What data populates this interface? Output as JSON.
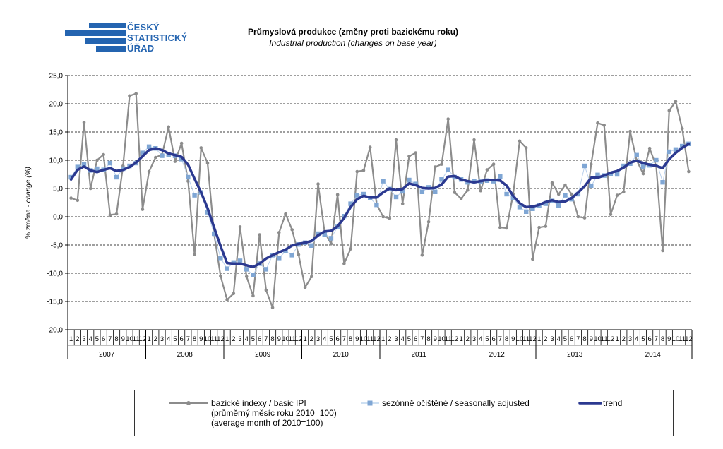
{
  "logo": {
    "lines": [
      "ČESKÝ",
      "STATISTICKÝ",
      "ÚŘAD"
    ],
    "color": "#2464b0"
  },
  "title": {
    "main": "Průmyslová produkce (změny proti bazickému roku)",
    "sub": "Industrial production (changes on base year)"
  },
  "chart_data": {
    "type": "line",
    "ylabel": "% změna - change (%)",
    "ylabel_parts": {
      "cz": "% změna - ",
      "en": "change (%)"
    },
    "ylim": [
      -20,
      25
    ],
    "yticks": [
      "25,0",
      "20,0",
      "15,0",
      "10,0",
      "5,0",
      "0,0",
      "-5,0",
      "-10,0",
      "-15,0",
      "-20,0"
    ],
    "ytick_values": [
      25,
      20,
      15,
      10,
      5,
      0,
      -5,
      -10,
      -15,
      -20
    ],
    "grid": "horizontal dashed",
    "month_labels": [
      "1",
      "2",
      "3",
      "4",
      "5",
      "6",
      "7",
      "8",
      "9",
      "10",
      "11",
      "12"
    ],
    "years": [
      "2007",
      "2008",
      "2009",
      "2010",
      "2011",
      "2012",
      "2013",
      "2014"
    ],
    "series": [
      {
        "name": "bazické indexy / basic IPI (průměrný měsíc roku 2010=100) (average month of 2010=100)",
        "style": "line-circle",
        "color": "#8c8c8c",
        "values": [
          3.3,
          2.9,
          16.7,
          5.0,
          10.0,
          11.0,
          0.3,
          0.5,
          9.0,
          21.4,
          21.8,
          1.3,
          8.0,
          10.5,
          11.0,
          15.9,
          9.8,
          13.0,
          6.3,
          -6.7,
          12.2,
          9.5,
          -3.0,
          -10.5,
          -14.7,
          -13.6,
          -1.8,
          -10.6,
          -14.0,
          -3.2,
          -13.0,
          -16.1,
          -2.8,
          0.5,
          -2.3,
          -6.7,
          -12.5,
          -10.6,
          5.8,
          -2.7,
          -4.8,
          3.9,
          -8.3,
          -5.7,
          8.0,
          8.2,
          12.3,
          2.2,
          0.0,
          -0.3,
          13.6,
          2.3,
          10.7,
          11.3,
          -6.8,
          -0.9,
          8.8,
          9.3,
          17.3,
          4.3,
          3.2,
          4.7,
          13.6,
          4.6,
          8.3,
          9.3,
          -1.9,
          -2.0,
          4.0,
          13.4,
          12.2,
          -7.5,
          -1.9,
          -1.7,
          6.0,
          4.0,
          5.6,
          4.0,
          0.0,
          -0.2,
          9.3,
          16.6,
          16.2,
          0.4,
          3.8,
          4.4,
          15.1,
          10.0,
          7.6,
          12.1,
          9.0,
          -6.0,
          18.8,
          20.4,
          15.6,
          8.0
        ]
      },
      {
        "name": "sezónně očištěné / seasonally adjusted",
        "style": "square",
        "color": "#7fa6d4",
        "values": [
          7.0,
          8.8,
          9.3,
          8.2,
          8.5,
          8.3,
          9.5,
          7.0,
          8.5,
          9.0,
          9.5,
          11.3,
          12.4,
          12.1,
          10.8,
          11.0,
          10.8,
          10.2,
          7.0,
          3.8,
          4.3,
          0.8,
          -3.0,
          -7.3,
          -9.2,
          -8.1,
          -7.8,
          -9.3,
          -10.3,
          -8.3,
          -9.3,
          -6.8,
          -7.3,
          -6.1,
          -6.8,
          -4.9,
          -4.6,
          -5.1,
          -3.0,
          -3.1,
          -3.8,
          -1.8,
          0.1,
          2.3,
          3.8,
          4.0,
          3.3,
          2.1,
          6.3,
          4.9,
          3.5,
          4.5,
          6.5,
          5.8,
          4.4,
          5.2,
          4.4,
          6.6,
          8.3,
          7.0,
          6.6,
          6.1,
          6.3,
          6.2,
          6.4,
          6.3,
          7.1,
          4.0,
          3.4,
          1.7,
          0.9,
          1.4,
          2.0,
          2.3,
          2.8,
          2.0,
          3.8,
          3.1,
          4.0,
          9.0,
          5.4,
          7.4,
          7.3,
          7.6,
          7.5,
          9.0,
          9.4,
          10.9,
          8.9,
          9.1,
          10.0,
          6.1,
          11.5,
          11.9,
          12.5,
          12.9
        ]
      },
      {
        "name": "trend",
        "style": "line-thick",
        "color": "#2b3990",
        "values": [
          6.6,
          8.3,
          8.9,
          8.2,
          7.9,
          8.3,
          8.6,
          8.1,
          8.3,
          8.8,
          9.6,
          10.7,
          11.8,
          12.1,
          11.8,
          11.2,
          10.9,
          10.6,
          9.2,
          6.7,
          4.3,
          1.5,
          -1.9,
          -5.2,
          -8.2,
          -8.3,
          -8.3,
          -8.6,
          -8.9,
          -8.3,
          -7.4,
          -6.8,
          -6.3,
          -5.8,
          -5.1,
          -4.8,
          -4.6,
          -4.3,
          -3.3,
          -2.6,
          -2.5,
          -1.7,
          -0.2,
          1.7,
          3.1,
          3.7,
          3.4,
          3.4,
          4.3,
          5.0,
          4.7,
          4.9,
          5.9,
          5.6,
          5.1,
          5.0,
          5.1,
          5.7,
          7.1,
          7.2,
          6.6,
          6.3,
          6.1,
          6.3,
          6.5,
          6.5,
          6.4,
          5.5,
          3.7,
          2.4,
          1.7,
          1.8,
          2.1,
          2.6,
          2.9,
          2.6,
          2.7,
          3.3,
          4.3,
          5.4,
          6.9,
          6.9,
          7.3,
          7.8,
          8.1,
          8.7,
          9.6,
          9.9,
          9.5,
          9.2,
          9.0,
          8.6,
          10.2,
          11.3,
          12.2,
          12.9
        ]
      }
    ]
  },
  "legend": {
    "basic_line1": "bazické indexy / basic IPI",
    "basic_line2": "(průměrný měsíc roku 2010=100)",
    "basic_line3": "(average month of 2010=100)",
    "seasonal": "sezónně očištěné / seasonally adjusted",
    "trend": "trend"
  }
}
